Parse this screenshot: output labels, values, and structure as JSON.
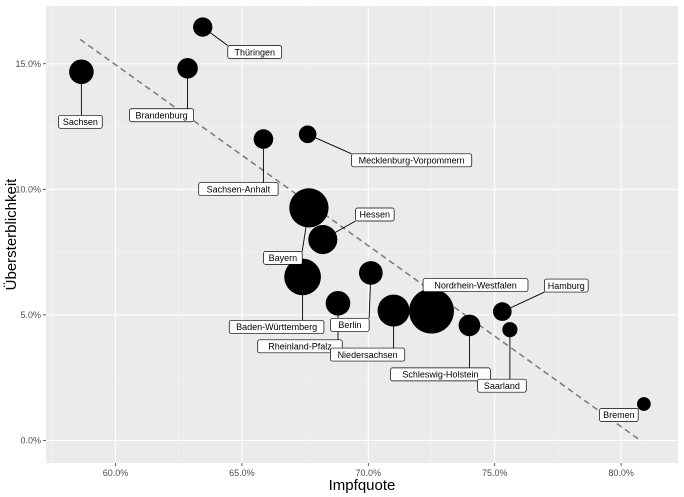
{
  "chart_data": {
    "type": "scatter",
    "xlabel": "Impfquote",
    "ylabel": "Übersterblichkeit",
    "xlim": [
      0.5725,
      0.8225
    ],
    "ylim": [
      -0.009,
      0.173
    ],
    "x_ticks": [
      {
        "value": 0.6,
        "label": "60.0%"
      },
      {
        "value": 0.65,
        "label": "65.0%"
      },
      {
        "value": 0.7,
        "label": "70.0%"
      },
      {
        "value": 0.75,
        "label": "75.0%"
      },
      {
        "value": 0.8,
        "label": "80.0%"
      }
    ],
    "y_ticks": [
      {
        "value": 0.0,
        "label": "0.0%"
      },
      {
        "value": 0.05,
        "label": "5.0%"
      },
      {
        "value": 0.1,
        "label": "10.0%"
      },
      {
        "value": 0.15,
        "label": "15.0%"
      }
    ],
    "grid": true,
    "trendline": {
      "style": "dashed",
      "color": "#808080",
      "x": [
        0.586,
        0.808
      ],
      "y": [
        0.1597,
        -0.0003
      ]
    },
    "colors": {
      "panel": "#ebebeb",
      "grid_major": "#ffffff",
      "grid_minor": "#f5f5f5",
      "point": "#000000"
    },
    "points": [
      {
        "name": "Sachsen",
        "x": 0.5865,
        "y": 0.1468,
        "size": 4.1
      },
      {
        "name": "Brandenburg",
        "x": 0.6285,
        "y": 0.1482,
        "size": 2.5
      },
      {
        "name": "Thüringen",
        "x": 0.6345,
        "y": 0.1646,
        "size": 2.1
      },
      {
        "name": "Sachsen-Anhalt",
        "x": 0.6585,
        "y": 0.12,
        "size": 2.2
      },
      {
        "name": "Mecklenburg-Vorpommern",
        "x": 0.676,
        "y": 0.1219,
        "size": 1.6
      },
      {
        "name": "Bayern",
        "x": 0.6765,
        "y": 0.0926,
        "size": 13.1
      },
      {
        "name": "Hessen",
        "x": 0.682,
        "y": 0.08,
        "size": 6.3
      },
      {
        "name": "Baden-Württemberg",
        "x": 0.674,
        "y": 0.0651,
        "size": 11.1
      },
      {
        "name": "Rheinland-Pfalz",
        "x": 0.688,
        "y": 0.0546,
        "size": 4.1
      },
      {
        "name": "Berlin",
        "x": 0.701,
        "y": 0.0667,
        "size": 3.7
      },
      {
        "name": "Niedersachsen",
        "x": 0.71,
        "y": 0.0517,
        "size": 8.0
      },
      {
        "name": "Nordrhein-Westfalen",
        "x": 0.725,
        "y": 0.0515,
        "size": 17.9
      },
      {
        "name": "Schleswig-Holstein",
        "x": 0.74,
        "y": 0.0458,
        "size": 2.9
      },
      {
        "name": "Hamburg",
        "x": 0.753,
        "y": 0.0513,
        "size": 1.9
      },
      {
        "name": "Saarland",
        "x": 0.756,
        "y": 0.0441,
        "size": 1.0
      },
      {
        "name": "Bremen",
        "x": 0.809,
        "y": 0.0145,
        "size": 0.7
      }
    ]
  }
}
